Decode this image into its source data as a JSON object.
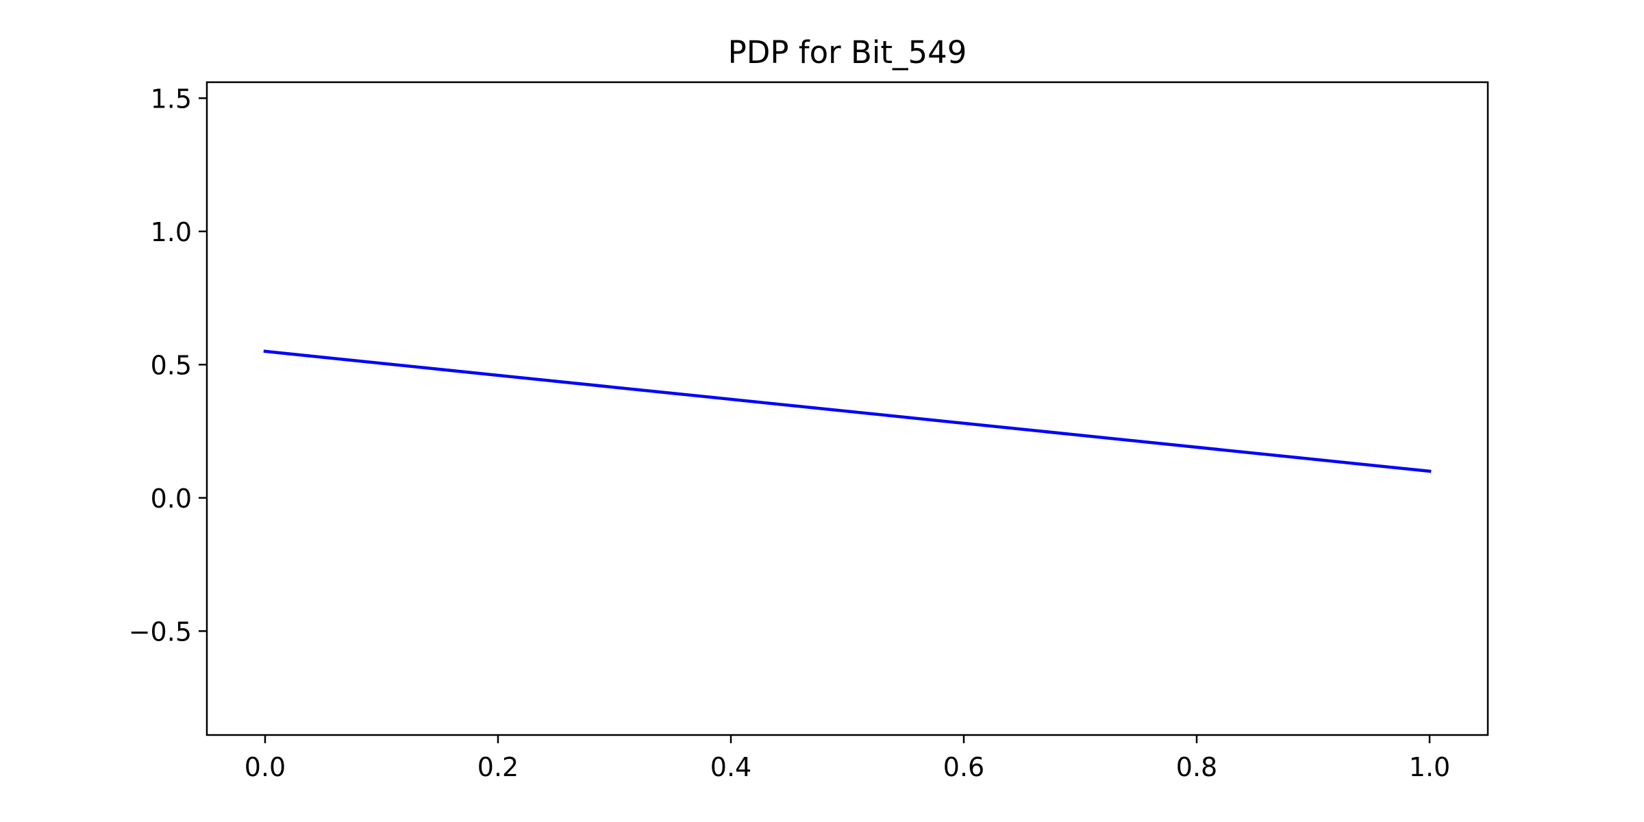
{
  "chart_data": {
    "type": "line",
    "title": "PDP for Bit_549",
    "xlabel": "",
    "ylabel": "",
    "xlim": [
      -0.05,
      1.05
    ],
    "ylim": [
      -0.89,
      1.56
    ],
    "x_ticks": [
      0.0,
      0.2,
      0.4,
      0.6,
      0.8,
      1.0
    ],
    "x_tick_labels": [
      "0.0",
      "0.2",
      "0.4",
      "0.6",
      "0.8",
      "1.0"
    ],
    "y_ticks": [
      -0.5,
      0.0,
      0.5,
      1.0,
      1.5
    ],
    "y_tick_labels": [
      "−0.5",
      "0.0",
      "0.5",
      "1.0",
      "1.5"
    ],
    "grid": false,
    "series": [
      {
        "color": "#0000ff",
        "x": [
          0.0,
          1.0
        ],
        "y": [
          0.55,
          0.1
        ]
      }
    ]
  }
}
